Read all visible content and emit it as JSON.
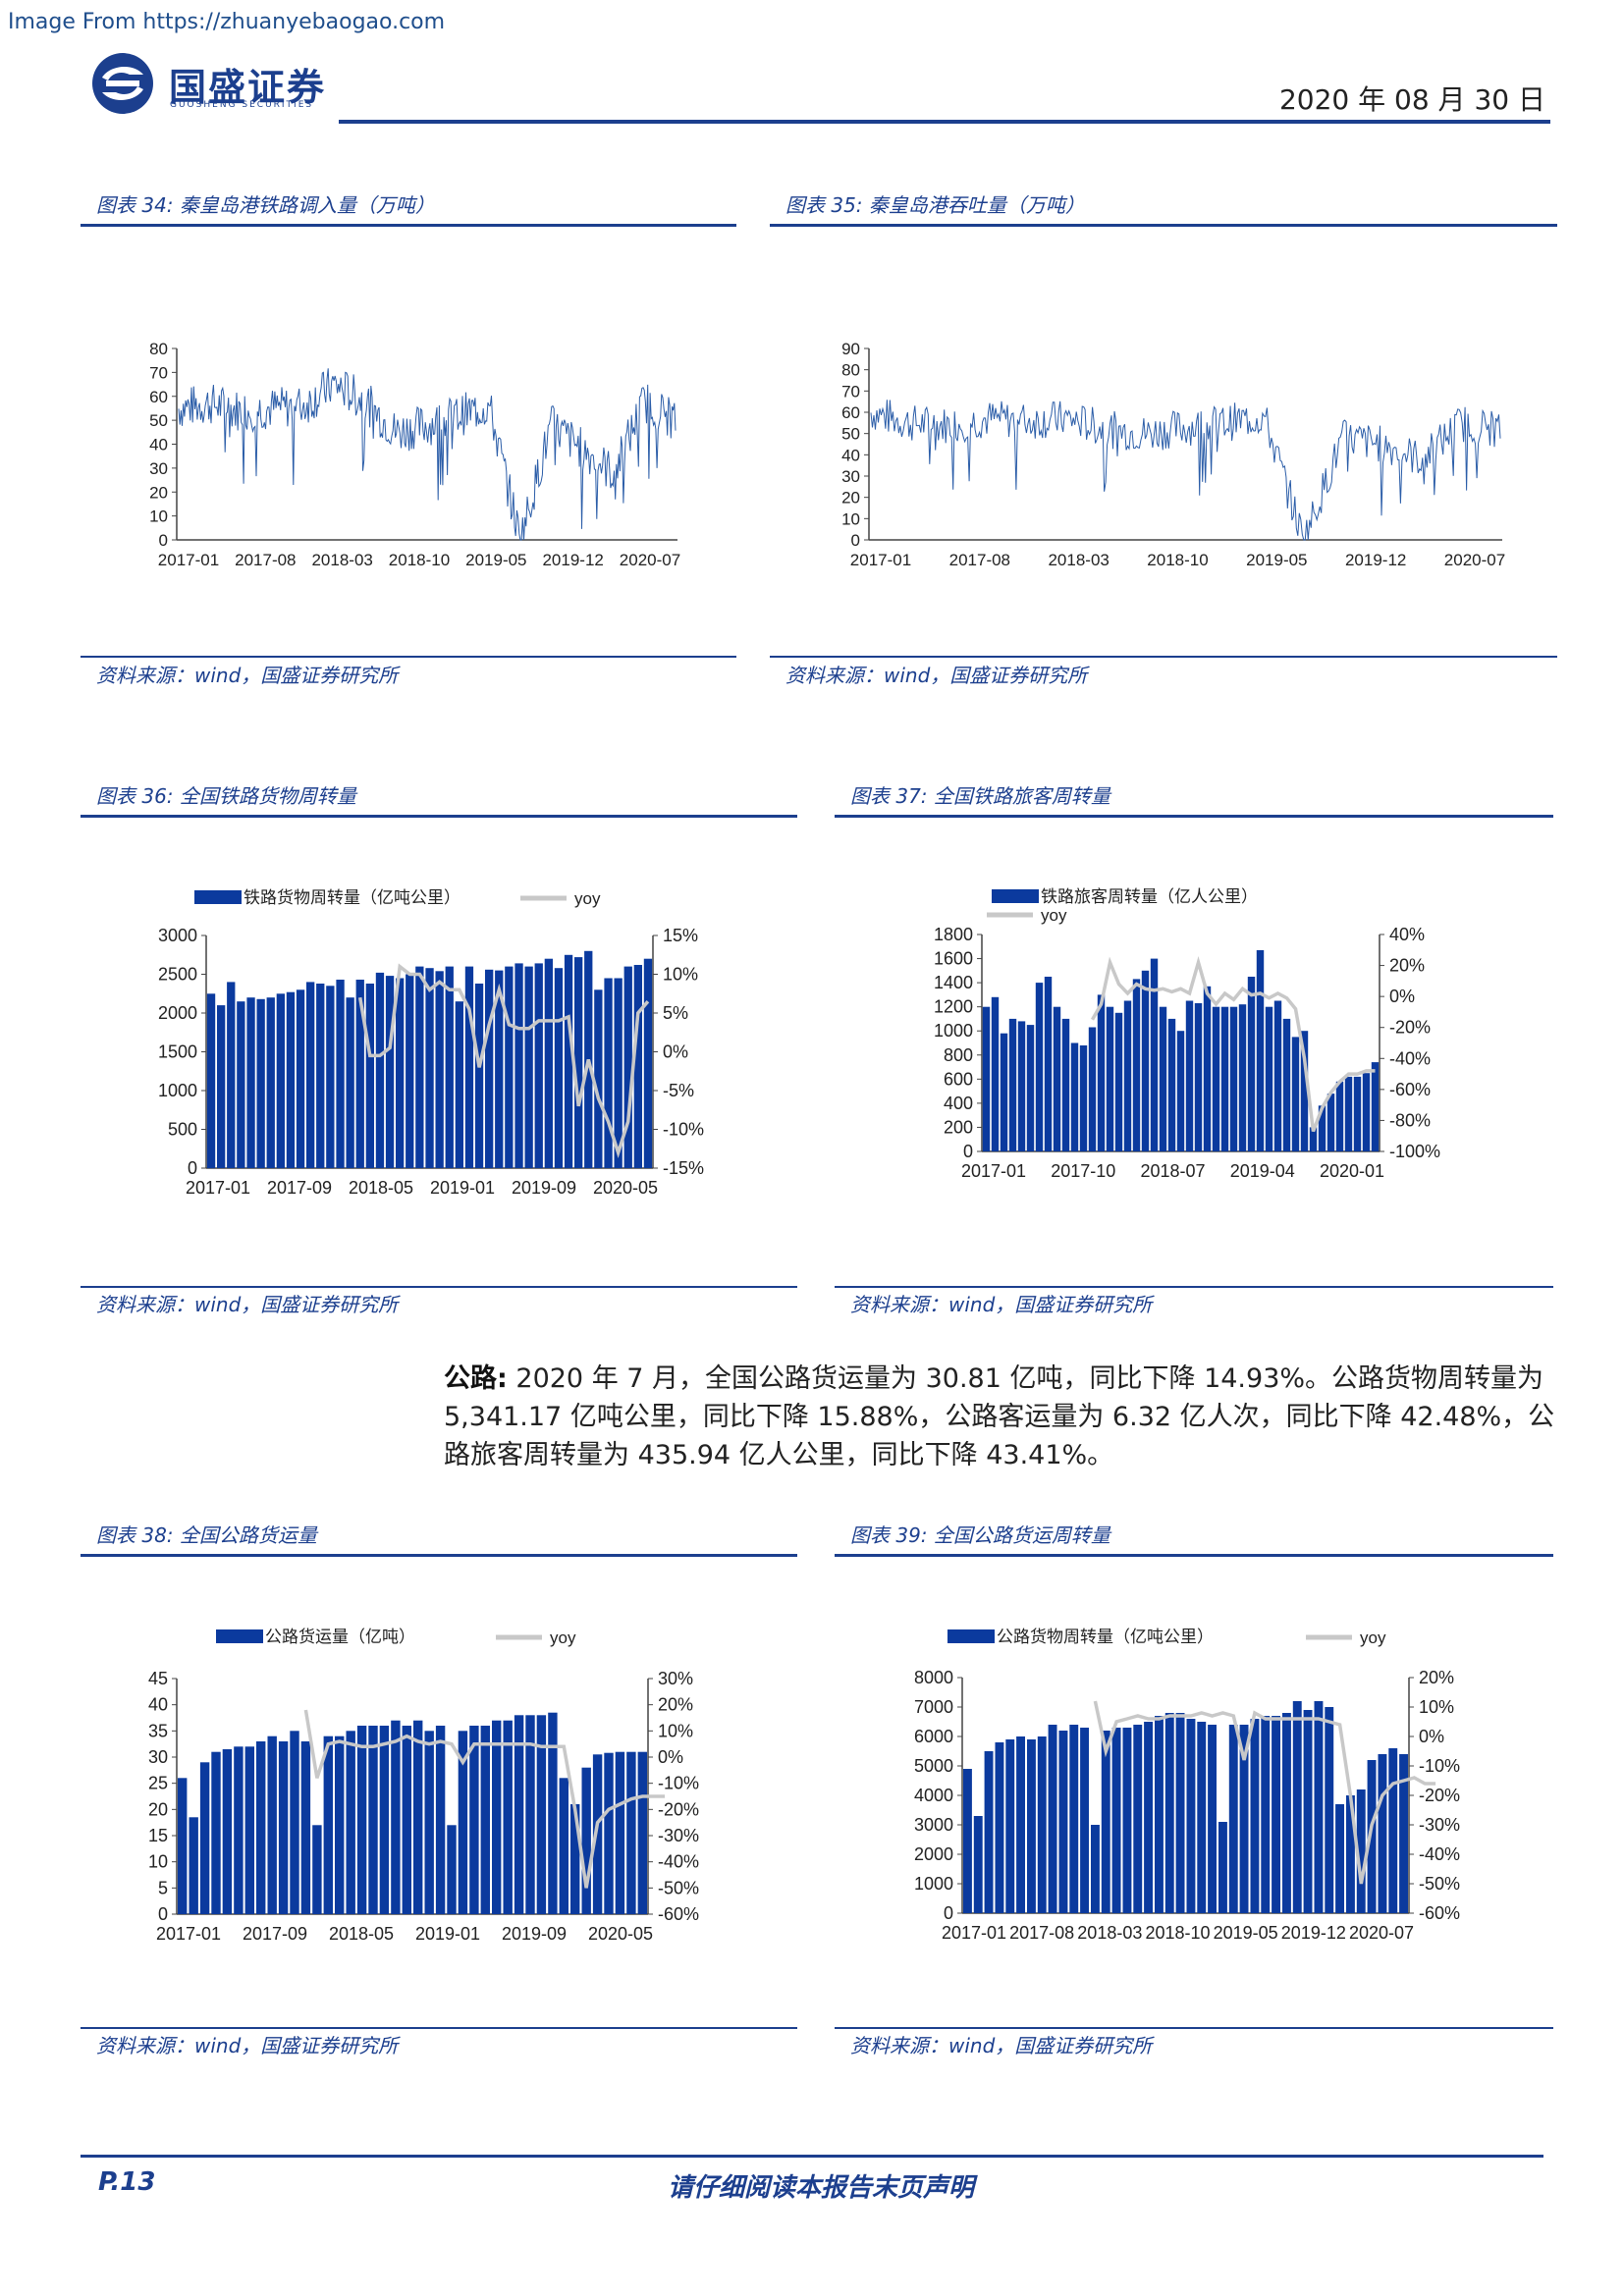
{
  "watermark": "Image From https://zhuanyebaogao.com",
  "header": {
    "company_cn": "国盛证券",
    "company_en": "GUOSHENG SECURITIES",
    "date": "2020 年 08 月 30 日"
  },
  "body": {
    "lead": "公路:",
    "text": " 2020 年 7 月，全国公路货运量为 30.81 亿吨，同比下降 14.93%。公路货物周转量为 5,341.17 亿吨公里，同比下降 15.88%，公路客运量为 6.32 亿人次，同比下降 42.48%，公路旅客周转量为 435.94 亿人公里，同比下降 43.41%。"
  },
  "footer": {
    "page": "P.13",
    "note": "请仔细阅读本报告末页声明"
  },
  "colors": {
    "brand": "#1c3f8e",
    "bar": "#0b3a9e",
    "line": "#c8c8c8",
    "series_line": "#2b5da8"
  },
  "chart_data": [
    {
      "id": "c34",
      "type": "line",
      "caption": "图表 34:  秦皇岛港铁路调入量（万吨）",
      "source": "资料来源：wind，国盛证券研究所",
      "xlabels": [
        "2017-01",
        "2017-08",
        "2018-03",
        "2018-10",
        "2019-05",
        "2019-12",
        "2020-07"
      ],
      "yticks": [
        "0",
        "10",
        "20",
        "30",
        "40",
        "50",
        "60",
        "70",
        "80"
      ],
      "ylim": [
        0,
        80
      ],
      "x": [
        "2017-01",
        "2017-04",
        "2017-08",
        "2017-12",
        "2018-03",
        "2018-05",
        "2018-07",
        "2018-10",
        "2019-01",
        "2019-05",
        "2019-07",
        "2019-09",
        "2019-12",
        "2020-02",
        "2020-04",
        "2020-07",
        "2020-08"
      ],
      "values": [
        55,
        57,
        54,
        55,
        56,
        65,
        58,
        45,
        48,
        52,
        56,
        0,
        48,
        38,
        28,
        58,
        50
      ]
    },
    {
      "id": "c35",
      "type": "line",
      "caption": "图表 35:  秦皇岛港吞吐量（万吨）",
      "source": "资料来源：wind，国盛证券研究所",
      "xlabels": [
        "2017-01",
        "2017-08",
        "2018-03",
        "2018-10",
        "2019-05",
        "2019-12",
        "2020-07"
      ],
      "yticks": [
        "0",
        "10",
        "20",
        "30",
        "40",
        "50",
        "60",
        "70",
        "80",
        "90"
      ],
      "ylim": [
        0,
        90
      ],
      "x": [
        "2017-01",
        "2017-04",
        "2017-08",
        "2017-12",
        "2018-03",
        "2018-05",
        "2018-07",
        "2018-10",
        "2019-01",
        "2019-05",
        "2019-07",
        "2019-09",
        "2019-12",
        "2020-02",
        "2020-04",
        "2020-07",
        "2020-08"
      ],
      "values": [
        60,
        55,
        54,
        57,
        56,
        57,
        52,
        50,
        53,
        55,
        58,
        0,
        48,
        45,
        38,
        55,
        52
      ]
    },
    {
      "id": "c36",
      "type": "bar",
      "caption": "图表 36:  全国铁路货物周转量",
      "source": "资料来源：wind，国盛证券研究所",
      "legend": [
        "铁路货物周转量（亿吨公里）",
        "yoy"
      ],
      "xlabels": [
        "2017-01",
        "2017-09",
        "2018-05",
        "2019-01",
        "2019-09",
        "2020-05"
      ],
      "yticks_left": [
        "0",
        "500",
        "1000",
        "1500",
        "2000",
        "2500",
        "3000"
      ],
      "yticks_right": [
        "-15%",
        "-10%",
        "-5%",
        "0%",
        "5%",
        "10%",
        "15%"
      ],
      "ylim": [
        0,
        3000
      ],
      "ylim_right": [
        -15,
        15
      ],
      "bar_values": [
        2250,
        2100,
        2400,
        2150,
        2200,
        2180,
        2200,
        2250,
        2270,
        2300,
        2400,
        2380,
        2350,
        2430,
        2200,
        2430,
        2380,
        2520,
        2480,
        2450,
        2500,
        2600,
        2580,
        2540,
        2600,
        2150,
        2600,
        2380,
        2560,
        2550,
        2600,
        2640,
        2600,
        2640,
        2700,
        2580,
        2750,
        2720,
        2800,
        2300,
        2450,
        2450,
        2600,
        2620,
        2700
      ],
      "yoy_start": 15,
      "line_values": [
        7,
        -0.5,
        -0.5,
        0.5,
        11,
        10,
        10,
        8,
        9,
        8,
        8,
        5.5,
        -2,
        3.5,
        8,
        3.5,
        3,
        3,
        4,
        4,
        4,
        4.5,
        -7,
        -1,
        -6,
        -9,
        -13,
        -9,
        5,
        6.5
      ]
    },
    {
      "id": "c37",
      "type": "bar",
      "caption": "图表 37:  全国铁路旅客周转量",
      "source": "资料来源：wind，国盛证券研究所",
      "legend": [
        "铁路旅客周转量（亿人公里）",
        "yoy"
      ],
      "xlabels": [
        "2017-01",
        "2017-10",
        "2018-07",
        "2019-04",
        "2020-01"
      ],
      "yticks_left": [
        "0",
        "200",
        "400",
        "600",
        "800",
        "1000",
        "1200",
        "1400",
        "1600",
        "1800"
      ],
      "yticks_right": [
        "-100%",
        "-80%",
        "-60%",
        "-40%",
        "-20%",
        "0%",
        "20%",
        "40%"
      ],
      "ylim": [
        0,
        1800
      ],
      "ylim_right": [
        -100,
        40
      ],
      "bar_values": [
        1200,
        1280,
        980,
        1100,
        1080,
        1050,
        1400,
        1450,
        1200,
        1100,
        900,
        880,
        1030,
        1300,
        1200,
        1150,
        1250,
        1430,
        1500,
        1600,
        1200,
        1100,
        1000,
        1250,
        1230,
        1370,
        1200,
        1200,
        1200,
        1220,
        1450,
        1670,
        1200,
        1250,
        1100,
        950,
        1000,
        200,
        380,
        480,
        580,
        620,
        620,
        650,
        740
      ],
      "yoy_start": 12,
      "line_values": [
        -15,
        -5,
        22,
        8,
        2,
        8,
        5,
        4,
        5,
        3,
        5,
        2,
        22,
        2,
        -5,
        2,
        -2,
        5,
        1,
        2,
        -1,
        2,
        -1,
        -8,
        -40,
        -87,
        -72,
        -62,
        -55,
        -50,
        -50,
        -48,
        -48
      ]
    },
    {
      "id": "c38",
      "type": "bar",
      "caption": "图表 38:  全国公路货运量",
      "source": "资料来源：wind，国盛证券研究所",
      "legend": [
        "公路货运量（亿吨）",
        "yoy"
      ],
      "xlabels": [
        "2017-01",
        "2017-09",
        "2018-05",
        "2019-01",
        "2019-09",
        "2020-05"
      ],
      "yticks_left": [
        "0",
        "5",
        "10",
        "15",
        "20",
        "25",
        "30",
        "35",
        "40",
        "45"
      ],
      "yticks_right": [
        "-60%",
        "-50%",
        "-40%",
        "-30%",
        "-20%",
        "-10%",
        "0%",
        "10%",
        "20%",
        "30%"
      ],
      "ylim": [
        0,
        45
      ],
      "ylim_right": [
        -60,
        30
      ],
      "bar_values": [
        26,
        18.5,
        29,
        31,
        31.5,
        32,
        32,
        33,
        34,
        33,
        35,
        33,
        17,
        34,
        34,
        35,
        36,
        36,
        36,
        37,
        36,
        37,
        35,
        36,
        17,
        35,
        36,
        36,
        37,
        37,
        38,
        38,
        38,
        38.5,
        26,
        21,
        28,
        30.5,
        30.8,
        31,
        31,
        31
      ],
      "yoy_start": 11,
      "line_values": [
        18,
        -8,
        5,
        6,
        5,
        4,
        4,
        5,
        6,
        8,
        6,
        5,
        6,
        5,
        -2,
        5,
        5,
        5,
        5,
        5,
        5,
        4,
        4,
        4,
        -20,
        -50,
        -25,
        -20,
        -18,
        -16,
        -15,
        -15,
        -15
      ]
    },
    {
      "id": "c39",
      "type": "bar",
      "caption": "图表 39:  全国公路货运周转量",
      "source": "资料来源：wind，国盛证券研究所",
      "legend": [
        "公路货物周转量（亿吨公里）",
        "yoy"
      ],
      "xlabels": [
        "2017-01",
        "2017-08",
        "2018-03",
        "2018-10",
        "2019-05",
        "2019-12",
        "2020-07"
      ],
      "yticks_left": [
        "0",
        "1000",
        "2000",
        "3000",
        "4000",
        "5000",
        "6000",
        "7000",
        "8000"
      ],
      "yticks_right": [
        "-60%",
        "-50%",
        "-40%",
        "-30%",
        "-20%",
        "-10%",
        "0%",
        "10%",
        "20%"
      ],
      "ylim": [
        0,
        8000
      ],
      "ylim_right": [
        -60,
        20
      ],
      "bar_values": [
        4900,
        3300,
        5500,
        5800,
        5900,
        6000,
        5900,
        6000,
        6400,
        6200,
        6400,
        6300,
        3000,
        6200,
        6300,
        6300,
        6400,
        6500,
        6700,
        6800,
        6800,
        6600,
        6500,
        6400,
        3100,
        6400,
        6400,
        6600,
        6700,
        6700,
        6800,
        7200,
        6900,
        7200,
        7000,
        3700,
        4000,
        4200,
        5200,
        5400,
        5600,
        5400
      ],
      "yoy_start": 12,
      "line_values": [
        12,
        -5,
        5,
        6,
        7,
        6,
        6,
        7,
        7,
        7,
        8,
        7,
        8,
        7,
        -8,
        8,
        6,
        6,
        6,
        6,
        6,
        6,
        5,
        4,
        -20,
        -50,
        -30,
        -20,
        -16,
        -15,
        -14,
        -16,
        -16
      ]
    }
  ]
}
